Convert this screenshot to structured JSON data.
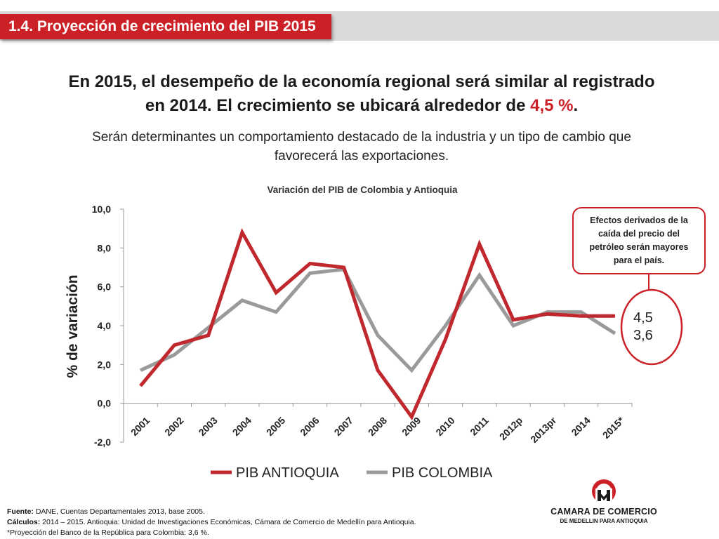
{
  "header": {
    "title": "1.4. Proyección de crecimiento del PIB 2015"
  },
  "headline": {
    "line1": "En 2015, el desempeño de la economía regional será similar al registrado",
    "line2_before": "en 2014. El crecimiento se ubicará alrededor de ",
    "highlight": "4,5 %",
    "line2_after": "."
  },
  "subheadline": {
    "line1": "Serán determinantes un comportamiento destacado de la industria y un tipo de cambio que",
    "line2": "favorecerá las exportaciones."
  },
  "chart_data": {
    "type": "line",
    "title": "Variación del PIB de Colombia y Antioquia",
    "ylabel": "% de variación",
    "xlabel": "",
    "ylim": [
      -2,
      10
    ],
    "yticks": [
      "-2,0",
      "0,0",
      "2,0",
      "4,0",
      "6,0",
      "8,0",
      "10,0"
    ],
    "ytick_values": [
      -2,
      0,
      2,
      4,
      6,
      8,
      10
    ],
    "categories": [
      "2001",
      "2002",
      "2003",
      "2004",
      "2005",
      "2006",
      "2007",
      "2008",
      "2009",
      "2010",
      "2011",
      "2012p",
      "2013pr",
      "2014",
      "2015*"
    ],
    "series": [
      {
        "name": "PIB ANTIOQUIA",
        "color": "#c0282d",
        "values": [
          0.9,
          3.0,
          3.5,
          8.8,
          5.7,
          7.2,
          7.0,
          1.7,
          -0.7,
          3.3,
          8.2,
          4.3,
          4.6,
          4.5,
          4.5
        ]
      },
      {
        "name": "PIB COLOMBIA",
        "color": "#9a9a9a",
        "values": [
          1.7,
          2.5,
          3.9,
          5.3,
          4.7,
          6.7,
          6.9,
          3.5,
          1.7,
          4.0,
          6.6,
          4.0,
          4.7,
          4.7,
          3.6
        ]
      }
    ],
    "end_labels": [
      "4,5",
      "3,6"
    ],
    "legend_position": "bottom",
    "grid": false,
    "callout": {
      "text_lines": [
        "Efectos derivados de la",
        "caída del precio del",
        "petróleo serán mayores",
        "para el país."
      ]
    }
  },
  "footer": {
    "fuente_label": "Fuente:",
    "fuente_text": " DANE, Cuentas Departamentales 2013, base 2005.",
    "calculos_label": "Cálculos:",
    "calculos_text": " 2014 – 2015. Antioquia: Unidad de Investigaciones Económicas, Cámara de Comercio de Medellín para Antioquia.",
    "note": "*Proyección del Banco de la República para Colombia: 3,6 %."
  },
  "logo": {
    "line1": "CAMARA DE COMERCIO",
    "line2": "DE MEDELLIN PARA ANTIOQUIA",
    "brand_color": "#cc2027"
  }
}
